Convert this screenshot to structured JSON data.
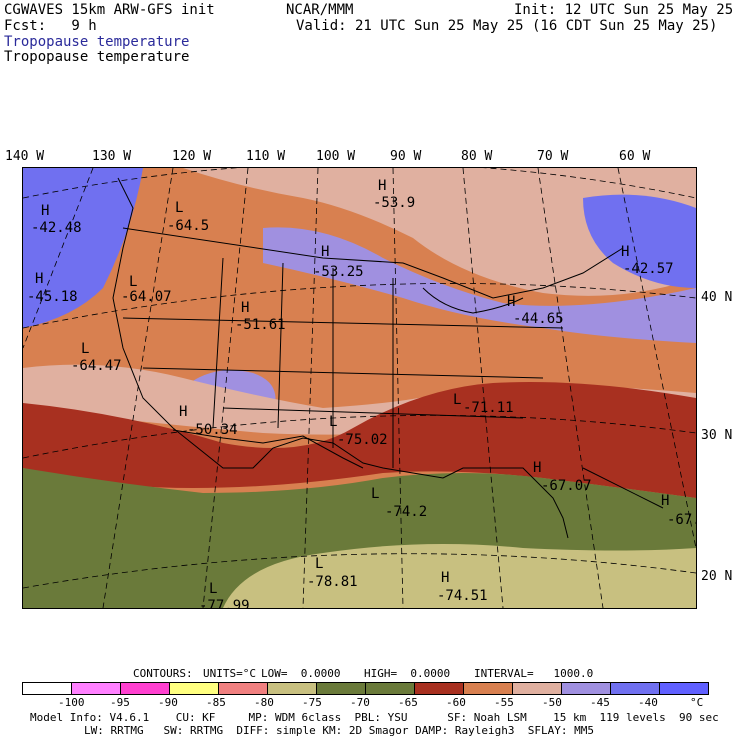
{
  "header": {
    "line1_left": "CGWAVES 15km ARW-GFS init",
    "line1_mid": "NCAR/MMM",
    "line1_right": "Init: 12 UTC Sun 25 May 25",
    "line2_left": "Fcst:   9 h",
    "line2_right": "Valid: 21 UTC Sun 25 May 25 (16 CDT Sun 25 May 25)",
    "field_title_1": "Tropopause temperature",
    "field_title_2": "Tropopause temperature"
  },
  "longitude_labels": [
    "140 W",
    "130 W",
    "120 W",
    "110 W",
    "100 W",
    "90 W",
    "80 W",
    "70 W",
    "60 W"
  ],
  "latitude_labels": [
    "40 N",
    "30 N",
    "20 N"
  ],
  "map_labels": [
    {
      "hl": "H",
      "value": "-42.48"
    },
    {
      "hl": "L",
      "value": "-64.5"
    },
    {
      "hl": "H",
      "value": "-53.9"
    },
    {
      "hl": "H",
      "value": "-53.25"
    },
    {
      "hl": "H",
      "value": "-45.18"
    },
    {
      "hl": "L",
      "value": "-64.07"
    },
    {
      "hl": "H",
      "value": "-51.61"
    },
    {
      "hl": "H",
      "value": "-42.57"
    },
    {
      "hl": "H",
      "value": "-44.65"
    },
    {
      "hl": "L",
      "value": "-64.47"
    },
    {
      "hl": "H",
      "value": "-50.34"
    },
    {
      "hl": "L",
      "value": "-75.02"
    },
    {
      "hl": "L",
      "value": "-71.11"
    },
    {
      "hl": "H",
      "value": "-67.07"
    },
    {
      "hl": "L",
      "value": "-74.2"
    },
    {
      "hl": "H",
      "value": "-67."
    },
    {
      "hl": "L",
      "value": "-78.81"
    },
    {
      "hl": "H",
      "value": "-74.51"
    },
    {
      "hl": "L",
      "value": "-77.99"
    }
  ],
  "contour_info": {
    "contours": "CONTOURS:",
    "units": "UNITS=°C",
    "low": "LOW=  0.0000",
    "high": "HIGH=  0.0000",
    "interval": "INTERVAL=   1000.0"
  },
  "colorbar": {
    "colors": [
      "#ffffff",
      "#ff80ff",
      "#ff40d0",
      "#ffff80",
      "#f08080",
      "#c8c080",
      "#6a7a3a",
      "#6a7a3a",
      "#a83020",
      "#d88050",
      "#e0b0a0",
      "#a090e0",
      "#7070f0",
      "#6060ff"
    ],
    "tick_labels": [
      "-100",
      "-95",
      "-90",
      "-85",
      "-80",
      "-75",
      "-70",
      "-65",
      "-60",
      "-55",
      "-50",
      "-45",
      "-40"
    ],
    "unit": "°C"
  },
  "footer": {
    "line1": "Model Info: V4.6.1    CU: KF     MP: WDM 6class  PBL: YSU      SF: Noah LSM    15 km  119 levels  90 sec",
    "line2": "LW: RRTMG   SW: RRTMG  DIFF: simple KM: 2D Smagor DAMP: Rayleigh3  SFLAY: MM5"
  }
}
